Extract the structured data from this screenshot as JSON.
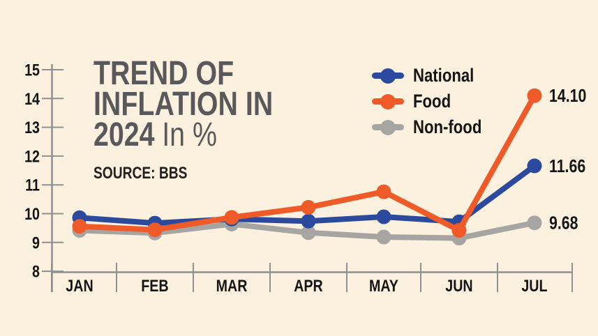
{
  "title": {
    "line1": "TREND OF",
    "line2": "INFLATION IN",
    "line3": "2024",
    "unit": "In %"
  },
  "source": "SOURCE: BBS",
  "colors": {
    "background": "#fcf0de",
    "title_gray": "#59595c",
    "axis_gray": "#8e9093",
    "text_black": "#141414",
    "national_blue": "#2b4a9d",
    "food_orange": "#ee5b28",
    "nonfood_gray": "#a7a5a2"
  },
  "chart_data": {
    "type": "line",
    "title": "TREND OF INFLATION IN 2024",
    "unit": "In %",
    "source": "BBS",
    "categories": [
      "JAN",
      "FEB",
      "MAR",
      "APR",
      "MAY",
      "JUN",
      "JUL"
    ],
    "series": [
      {
        "name": "National",
        "color": "#2b4a9d",
        "values": [
          9.86,
          9.67,
          9.81,
          9.74,
          9.89,
          9.72,
          11.66
        ],
        "end_label": "11.66"
      },
      {
        "name": "Food",
        "color": "#ee5b28",
        "values": [
          9.56,
          9.44,
          9.87,
          10.22,
          10.76,
          9.42,
          14.1
        ],
        "end_label": "14.10"
      },
      {
        "name": "Non-food",
        "color": "#a7a5a2",
        "values": [
          9.42,
          9.33,
          9.64,
          9.34,
          9.19,
          9.15,
          9.68
        ],
        "end_label": "9.68"
      }
    ],
    "ylim": [
      8,
      15
    ],
    "yticks": [
      15,
      14,
      13,
      12,
      11,
      10,
      9,
      8
    ],
    "grid": false,
    "legend_position": "top-right"
  }
}
